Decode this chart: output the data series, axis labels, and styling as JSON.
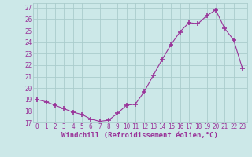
{
  "x": [
    0,
    1,
    2,
    3,
    4,
    5,
    6,
    7,
    8,
    9,
    10,
    11,
    12,
    13,
    14,
    15,
    16,
    17,
    18,
    19,
    20,
    21,
    22,
    23
  ],
  "y": [
    19.0,
    18.8,
    18.5,
    18.2,
    17.9,
    17.7,
    17.3,
    17.1,
    17.2,
    17.8,
    18.5,
    18.6,
    19.7,
    21.1,
    22.5,
    23.8,
    24.9,
    25.7,
    25.6,
    26.3,
    26.8,
    25.2,
    24.2,
    21.7
  ],
  "line_color": "#993399",
  "marker": "+",
  "marker_size": 4,
  "marker_linewidth": 1.2,
  "bg_color": "#cce8e8",
  "grid_color": "#aacccc",
  "xlabel": "Windchill (Refroidissement éolien,°C)",
  "xlabel_fontsize": 6.5,
  "tick_color": "#993399",
  "tick_labelsize": 5.5,
  "xlim": [
    -0.5,
    23.5
  ],
  "ylim": [
    17,
    27.4
  ],
  "yticks": [
    17,
    18,
    19,
    20,
    21,
    22,
    23,
    24,
    25,
    26,
    27
  ],
  "xticks": [
    0,
    1,
    2,
    3,
    4,
    5,
    6,
    7,
    8,
    9,
    10,
    11,
    12,
    13,
    14,
    15,
    16,
    17,
    18,
    19,
    20,
    21,
    22,
    23
  ]
}
